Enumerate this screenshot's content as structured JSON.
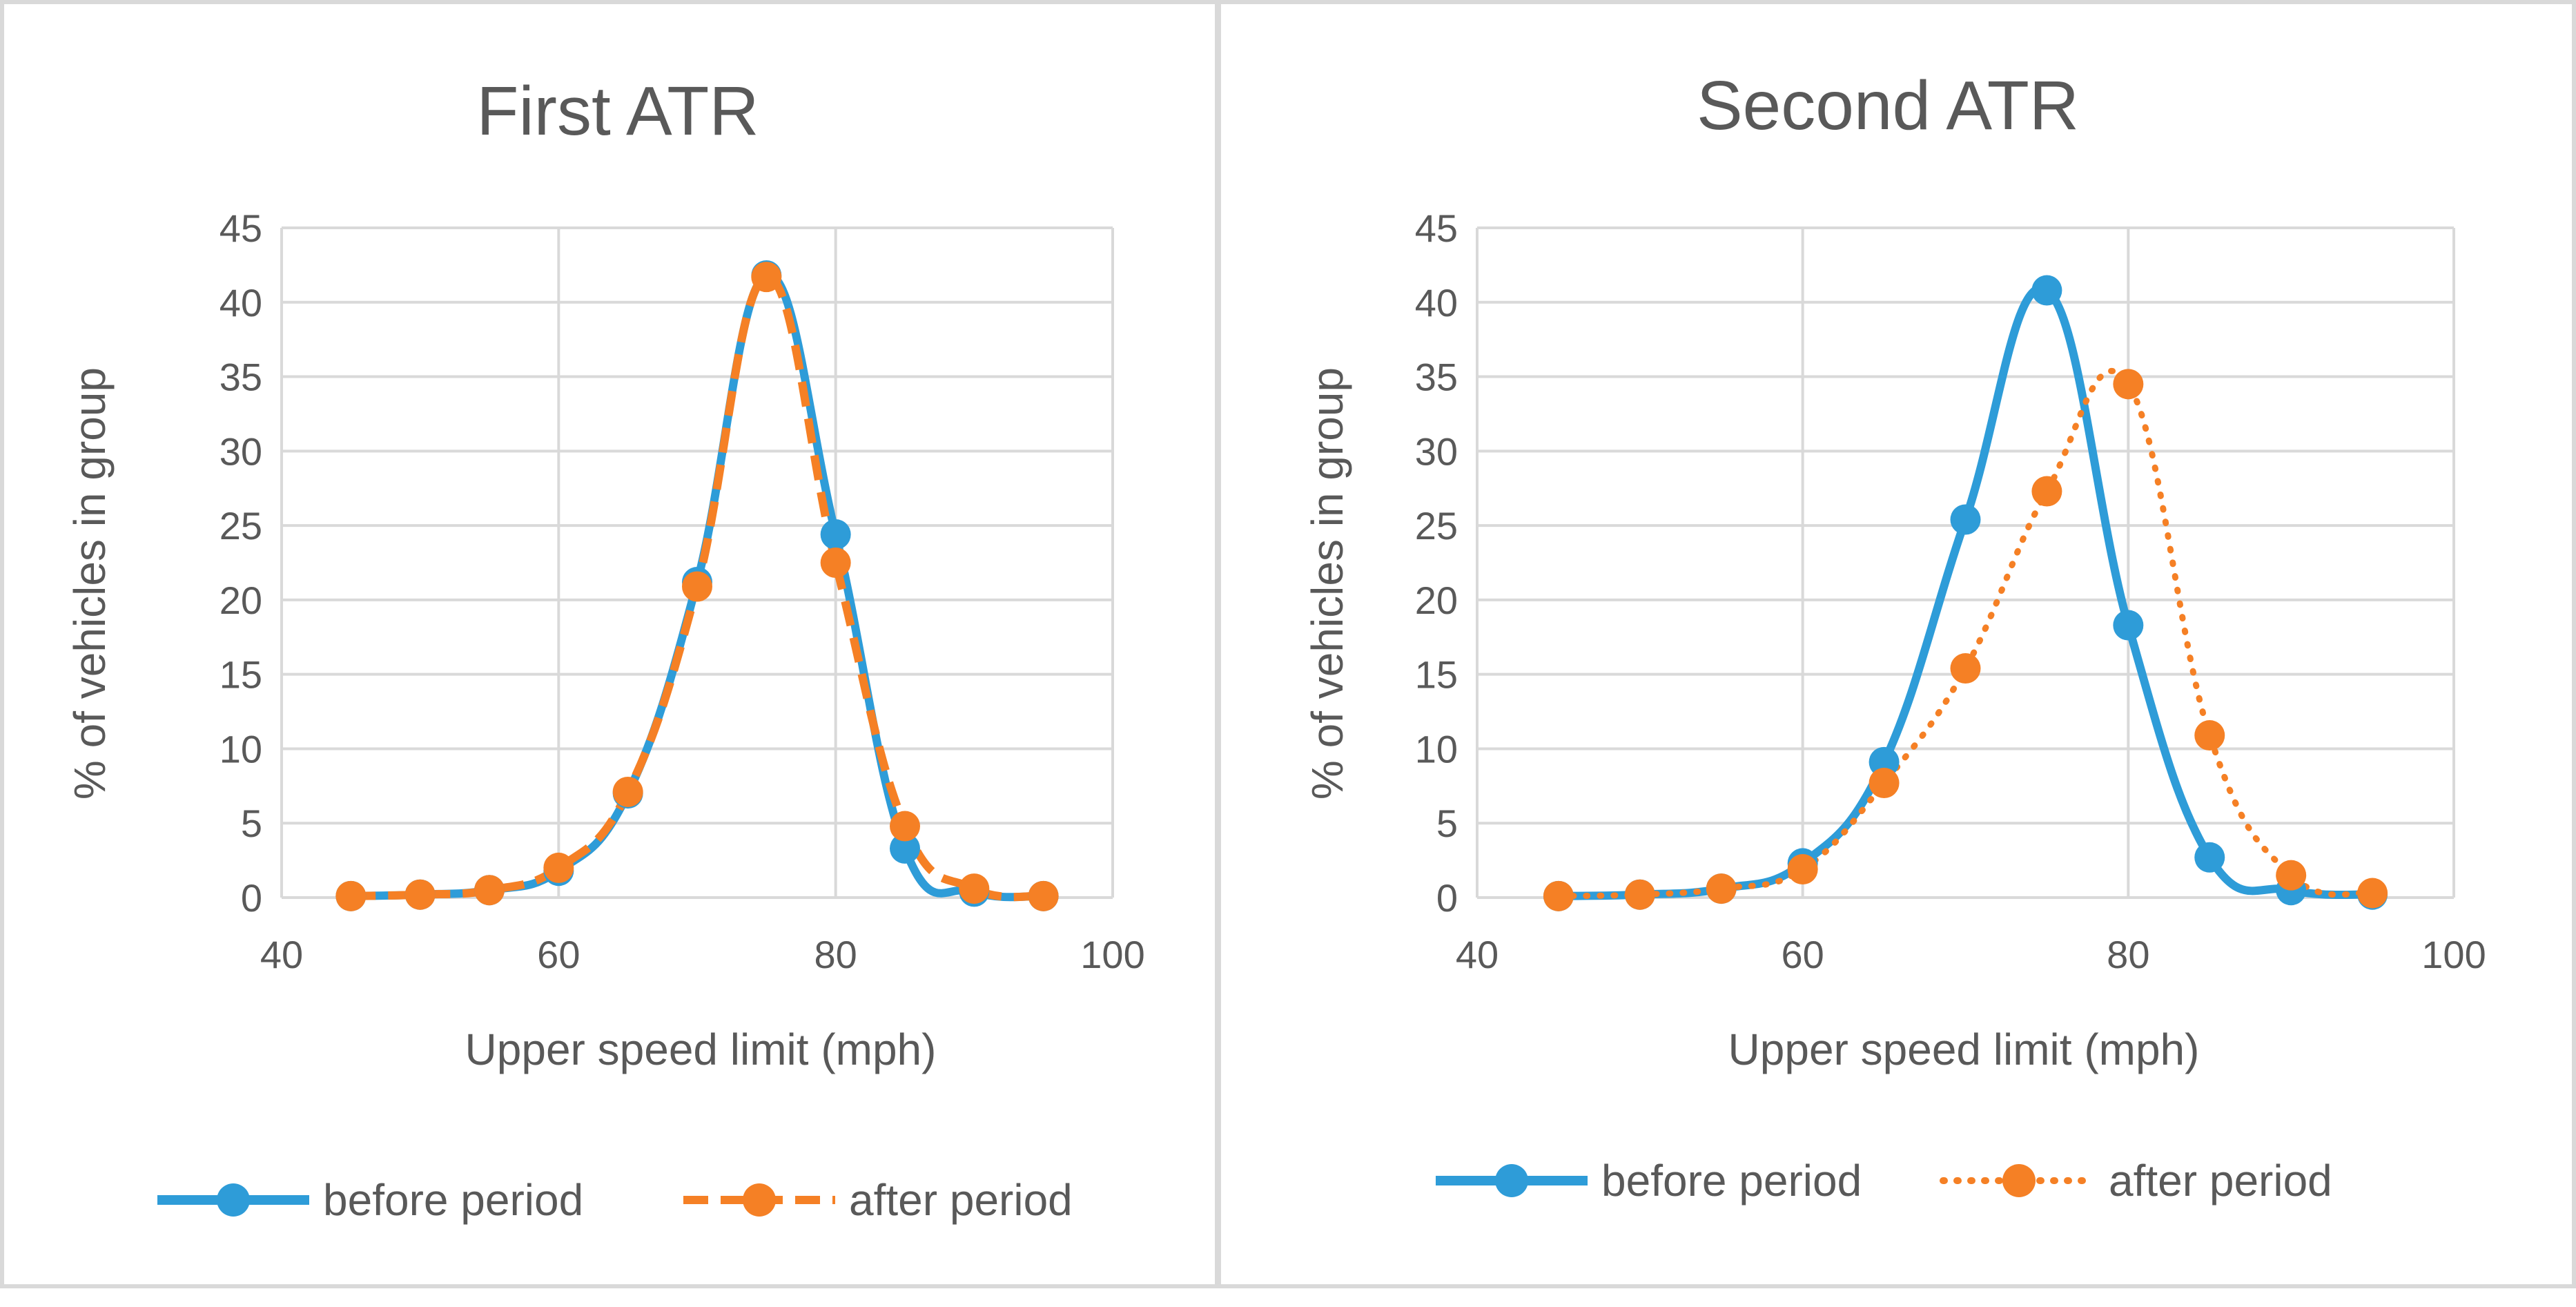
{
  "chart_data": [
    {
      "type": "line",
      "title": "First ATR",
      "xlabel": "Upper speed limit (mph)",
      "ylabel": "% of vehicles in group",
      "xlim": [
        40,
        100
      ],
      "ylim": [
        0,
        45
      ],
      "x_ticks": [
        40,
        60,
        80,
        100
      ],
      "y_ticks": [
        0,
        5,
        10,
        15,
        20,
        25,
        30,
        35,
        40,
        45
      ],
      "grid": true,
      "legend_position": "bottom",
      "x": [
        45,
        50,
        55,
        60,
        65,
        70,
        75,
        80,
        85,
        90,
        95
      ],
      "series": [
        {
          "name": "before period",
          "style": "solid",
          "color": "#2E9CD8",
          "values": [
            0.1,
            0.2,
            0.5,
            1.8,
            7.0,
            21.2,
            41.8,
            24.4,
            3.3,
            0.4,
            0.1
          ]
        },
        {
          "name": "after period",
          "style": "dashed",
          "color": "#F58025",
          "values": [
            0.1,
            0.2,
            0.5,
            2.0,
            7.1,
            20.9,
            41.7,
            22.5,
            4.8,
            0.6,
            0.1
          ]
        }
      ]
    },
    {
      "type": "line",
      "title": "Second ATR",
      "xlabel": "Upper speed limit (mph)",
      "ylabel": "% of vehicles in group",
      "xlim": [
        40,
        100
      ],
      "ylim": [
        0,
        45
      ],
      "x_ticks": [
        40,
        60,
        80,
        100
      ],
      "y_ticks": [
        0,
        5,
        10,
        15,
        20,
        25,
        30,
        35,
        40,
        45
      ],
      "grid": true,
      "legend_position": "bottom",
      "x": [
        45,
        50,
        55,
        60,
        65,
        70,
        75,
        80,
        85,
        90,
        95
      ],
      "series": [
        {
          "name": "before period",
          "style": "solid",
          "color": "#2E9CD8",
          "values": [
            0.1,
            0.2,
            0.6,
            2.3,
            9.1,
            25.4,
            40.8,
            18.3,
            2.7,
            0.5,
            0.2
          ]
        },
        {
          "name": "after period",
          "style": "dotted",
          "color": "#F58025",
          "values": [
            0.1,
            0.2,
            0.6,
            1.9,
            7.7,
            15.4,
            27.3,
            34.5,
            10.9,
            1.5,
            0.3
          ]
        }
      ]
    }
  ]
}
